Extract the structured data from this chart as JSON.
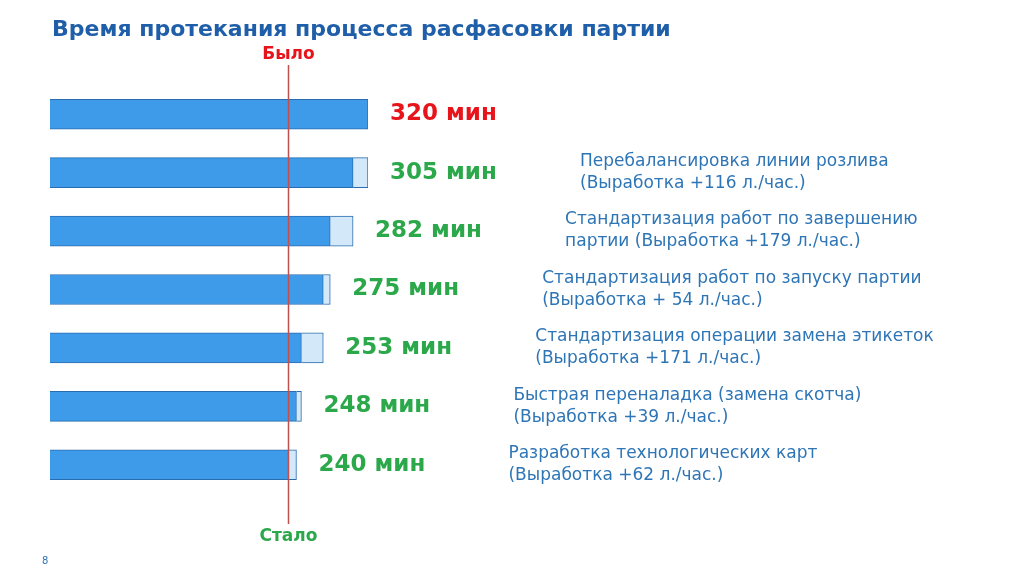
{
  "chart_data": {
    "type": "bar",
    "orientation": "horizontal",
    "stacked": true,
    "title": "Время протекания процесса расфасовки партии",
    "categories": [
      null,
      null,
      null,
      null,
      null,
      null,
      null
    ],
    "series": [
      {
        "color": "#3d9be9",
        "values": [
          320,
          305,
          282,
          275,
          253,
          248,
          240
        ],
        "value_labels": [
          "320 мин",
          "305 мин",
          "282 мин",
          "275 мин",
          "253 мин",
          "248 мин",
          "240 мин"
        ]
      },
      {
        "color": "#d3e8f8",
        "values": [
          null,
          15,
          23,
          7,
          22,
          5,
          8
        ]
      }
    ],
    "xlim": [
      0,
      320
    ],
    "ref_lines": [
      {
        "axis": "x",
        "value": 240,
        "label": "Стало",
        "color": "#c0504d"
      }
    ],
    "annotations": [
      "Было",
      "Перебалансировка линии розлива\n(Выработка +116 л./час.)",
      "Стандартизация работ по завершению\nпартии (Выработка +179 л./час.)",
      "Стандартизация работ по запуску партии\n(Выработка + 54 л./час.)",
      "Стандартизация операции замена этикеток\n(Выработка +171 л./час.)",
      "Быстрая переналадка (замена скотча)\n(Выработка +39 л./час.)",
      "Разработка технологических карт\n(Выработка +62 л./час.)",
      "8"
    ]
  }
}
